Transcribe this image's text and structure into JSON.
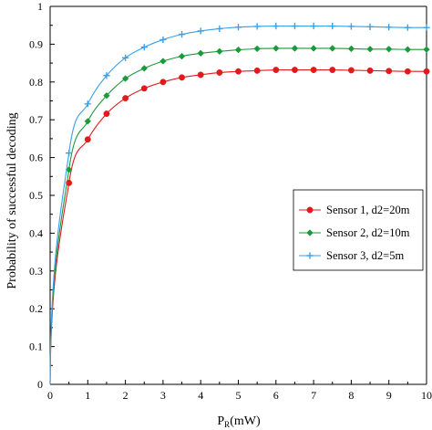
{
  "chart_data": {
    "type": "line",
    "xlabel": "P",
    "xlabel_sub": "R",
    "xlabel_unit": "(mW)",
    "ylabel": "Probability of successful decoding",
    "xlim": [
      0,
      10
    ],
    "ylim": [
      0,
      1
    ],
    "xticks": [
      "0",
      "1",
      "2",
      "3",
      "4",
      "5",
      "6",
      "7",
      "8",
      "9",
      "10"
    ],
    "yticks": [
      "0",
      "0.1",
      "0.2",
      "0.3",
      "0.4",
      "0.5",
      "0.6",
      "0.7",
      "0.8",
      "0.9",
      "1"
    ],
    "grid": "off",
    "legend_position": "right",
    "x": [
      0.5,
      1,
      1.5,
      2,
      2.5,
      3,
      3.5,
      4,
      4.5,
      5,
      5.5,
      6,
      6.5,
      7,
      7.5,
      8,
      8.5,
      9,
      9.5,
      10
    ],
    "series": [
      {
        "name": "Sensor 1, d2=20m",
        "color": "#e31a1c",
        "marker": "circle",
        "values": [
          0.533,
          0.648,
          0.716,
          0.757,
          0.783,
          0.8,
          0.812,
          0.819,
          0.825,
          0.828,
          0.83,
          0.832,
          0.832,
          0.832,
          0.832,
          0.831,
          0.83,
          0.829,
          0.828,
          0.828
        ]
      },
      {
        "name": "Sensor 2, d2=10m",
        "color": "#1a9a3a",
        "marker": "diamond",
        "values": [
          0.568,
          0.696,
          0.764,
          0.809,
          0.836,
          0.855,
          0.868,
          0.876,
          0.881,
          0.885,
          0.888,
          0.889,
          0.889,
          0.889,
          0.889,
          0.888,
          0.887,
          0.887,
          0.886,
          0.886
        ]
      },
      {
        "name": "Sensor 3, d2=5m",
        "color": "#3aa0e8",
        "marker": "plus",
        "values": [
          0.612,
          0.742,
          0.817,
          0.864,
          0.892,
          0.912,
          0.926,
          0.935,
          0.941,
          0.945,
          0.947,
          0.948,
          0.948,
          0.948,
          0.948,
          0.947,
          0.946,
          0.945,
          0.944,
          0.944
        ]
      }
    ]
  }
}
